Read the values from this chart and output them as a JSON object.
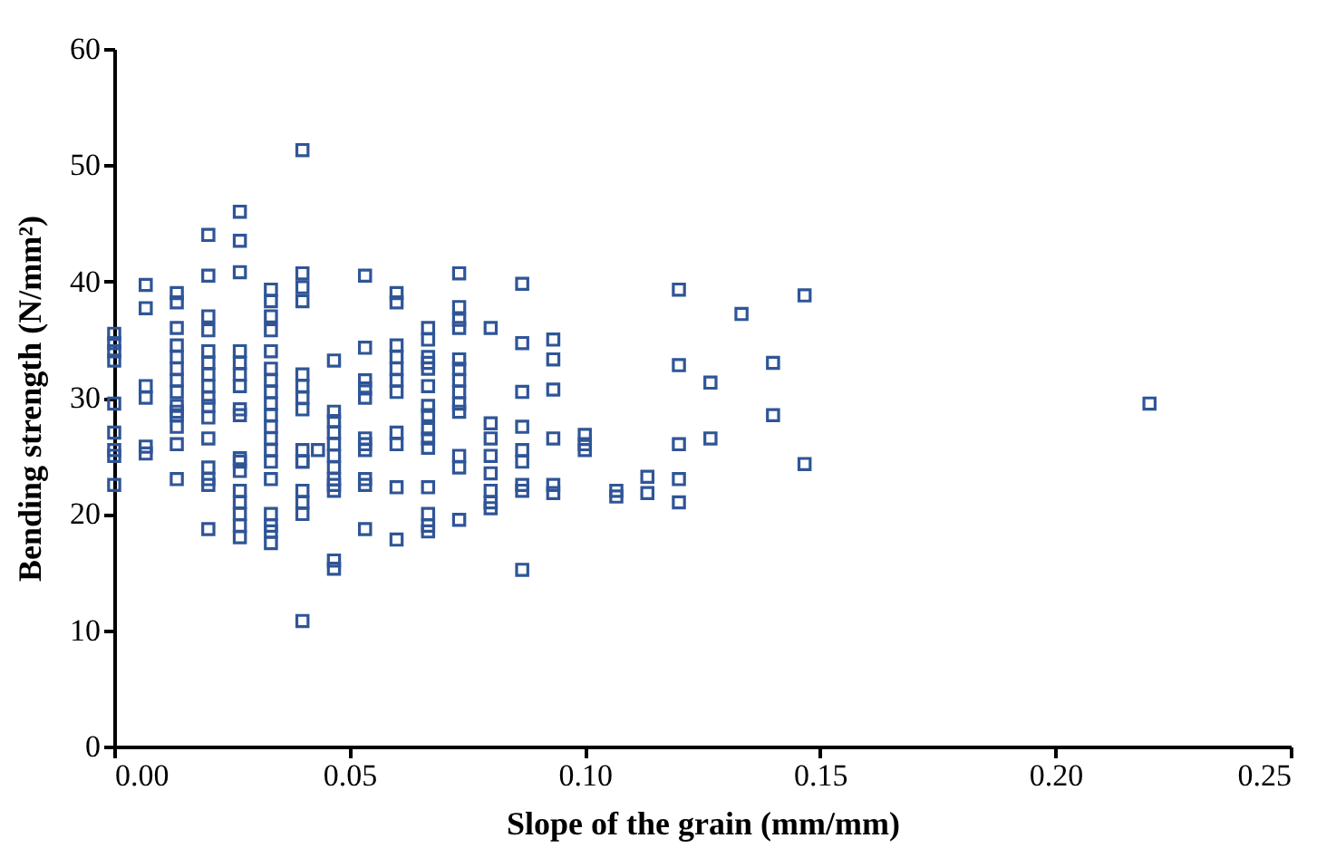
{
  "chart_data": {
    "type": "scatter",
    "xlabel": "Slope of the grain (mm/mm)",
    "ylabel": "Bending strength (N/mm²)",
    "xlim": [
      0,
      0.25
    ],
    "xticks": [
      {
        "value": 0,
        "label": "0.00"
      },
      {
        "value": 0.05,
        "label": "0.05"
      },
      {
        "value": 0.1,
        "label": "0.10"
      },
      {
        "value": 0.15,
        "label": "0.15"
      },
      {
        "value": 0.2,
        "label": "0.20"
      },
      {
        "value": 0.25,
        "label": "0.25"
      }
    ],
    "ylim": [
      0,
      60
    ],
    "yticks": [
      0,
      10,
      20,
      30,
      40,
      50,
      60
    ],
    "grid": false,
    "marker": "square",
    "series": [
      {
        "color": "#2f5597",
        "x": [
          0,
          0,
          0,
          0,
          0,
          0,
          0,
          0,
          0,
          0.0067,
          0.0067,
          0.0067,
          0.0067,
          0.0067,
          0.0067,
          0.0133,
          0.0133,
          0.0133,
          0.0133,
          0.0133,
          0.0133,
          0.0133,
          0.0133,
          0.0133,
          0.0133,
          0.0133,
          0.0133,
          0.0133,
          0.0133,
          0.02,
          0.02,
          0.02,
          0.02,
          0.02,
          0.02,
          0.02,
          0.02,
          0.02,
          0.02,
          0.02,
          0.02,
          0.02,
          0.02,
          0.02,
          0.02,
          0.0267,
          0.0267,
          0.0267,
          0.0267,
          0.0267,
          0.0267,
          0.0267,
          0.0267,
          0.0267,
          0.0267,
          0.0267,
          0.0267,
          0.0267,
          0.0267,
          0.0267,
          0.0267,
          0.0267,
          0.0333,
          0.0333,
          0.0333,
          0.0333,
          0.0333,
          0.0333,
          0.0333,
          0.0333,
          0.0333,
          0.0333,
          0.0333,
          0.0333,
          0.0333,
          0.0333,
          0.0333,
          0.0333,
          0.0333,
          0.0333,
          0.0333,
          0.04,
          0.04,
          0.04,
          0.04,
          0.04,
          0.04,
          0.04,
          0.04,
          0.04,
          0.04,
          0.04,
          0.04,
          0.04,
          0.04,
          0.04,
          0.0467,
          0.0467,
          0.0467,
          0.0467,
          0.0467,
          0.0467,
          0.0467,
          0.0467,
          0.0467,
          0.0467,
          0.0467,
          0.0467,
          0.0433,
          0.0533,
          0.0533,
          0.0533,
          0.0533,
          0.0533,
          0.0533,
          0.0533,
          0.0533,
          0.0533,
          0.0533,
          0.0533,
          0.06,
          0.06,
          0.06,
          0.06,
          0.06,
          0.06,
          0.06,
          0.06,
          0.06,
          0.06,
          0.06,
          0.0667,
          0.0667,
          0.0667,
          0.0667,
          0.0667,
          0.0667,
          0.0667,
          0.0667,
          0.0667,
          0.0667,
          0.0667,
          0.0667,
          0.0667,
          0.0667,
          0.0667,
          0.0733,
          0.0733,
          0.0733,
          0.0733,
          0.0733,
          0.0733,
          0.0733,
          0.0733,
          0.0733,
          0.0733,
          0.0733,
          0.0733,
          0.0733,
          0.08,
          0.08,
          0.08,
          0.08,
          0.08,
          0.08,
          0.08,
          0.08,
          0.0867,
          0.0867,
          0.0867,
          0.0867,
          0.0867,
          0.0867,
          0.0867,
          0.0867,
          0.0867,
          0.0933,
          0.0933,
          0.0933,
          0.0933,
          0.0933,
          0.0933,
          0.1,
          0.1,
          0.1,
          0.1067,
          0.1067,
          0.1133,
          0.1133,
          0.12,
          0.12,
          0.12,
          0.12,
          0.12,
          0.1267,
          0.1267,
          0.1333,
          0.14,
          0.14,
          0.1467,
          0.1467,
          0.22
        ],
        "values": [
          35.5,
          34.7,
          34,
          33.2,
          29.5,
          27,
          25.5,
          25,
          22.5,
          39.7,
          37.7,
          31,
          30,
          25.8,
          25.2,
          39,
          38.2,
          36,
          34.5,
          33.5,
          32.5,
          31.5,
          30.5,
          29.3,
          28.5,
          27.5,
          26,
          23,
          28.8,
          44,
          40.5,
          37,
          35.8,
          34,
          33,
          32,
          31,
          30,
          29.3,
          28.3,
          26.5,
          24,
          23,
          22.5,
          18.7,
          46,
          43.5,
          40.8,
          34,
          33,
          32,
          31,
          29,
          28.5,
          24.8,
          24.5,
          22,
          21,
          20,
          19,
          18,
          23.7,
          39.3,
          38.3,
          37,
          35.8,
          34,
          32.5,
          31.5,
          30.5,
          29.5,
          28.5,
          27.5,
          26.5,
          25.5,
          24.5,
          23,
          20,
          19,
          18.5,
          17.5,
          51.3,
          40.7,
          39.5,
          38.3,
          32,
          31,
          30,
          29,
          25.5,
          24.5,
          22,
          21,
          20,
          10.8,
          24.5,
          33.2,
          28.8,
          28,
          27,
          26,
          25,
          24,
          23,
          22.5,
          22,
          16,
          15.3,
          25.5,
          40.5,
          34.3,
          31.5,
          30.8,
          30,
          26.5,
          26,
          25.5,
          23,
          22.5,
          18.7,
          39,
          38.2,
          34.5,
          33.5,
          32.5,
          31.5,
          30.5,
          27,
          26,
          22.3,
          17.8,
          36,
          35,
          33.5,
          33,
          32.5,
          31,
          29.3,
          28.5,
          27.3,
          26.5,
          25.7,
          22.3,
          20,
          19,
          18.5,
          40.7,
          37.8,
          36.7,
          36,
          33.3,
          32.5,
          31.5,
          30.5,
          29.5,
          28.8,
          25,
          24,
          19.5,
          36,
          27.8,
          26.5,
          25,
          23.5,
          22,
          21,
          20.5,
          39.8,
          34.7,
          30.5,
          27.5,
          25.5,
          24.5,
          22.5,
          22,
          15.2,
          35,
          33.3,
          30.7,
          26.5,
          22.5,
          21.8,
          26.8,
          26,
          25.5,
          22,
          21.5,
          23.2,
          21.8,
          39.3,
          32.8,
          26,
          23,
          21,
          31.3,
          26.5,
          37.2,
          33,
          28.5,
          38.8,
          24.3,
          29.5
        ]
      }
    ]
  }
}
